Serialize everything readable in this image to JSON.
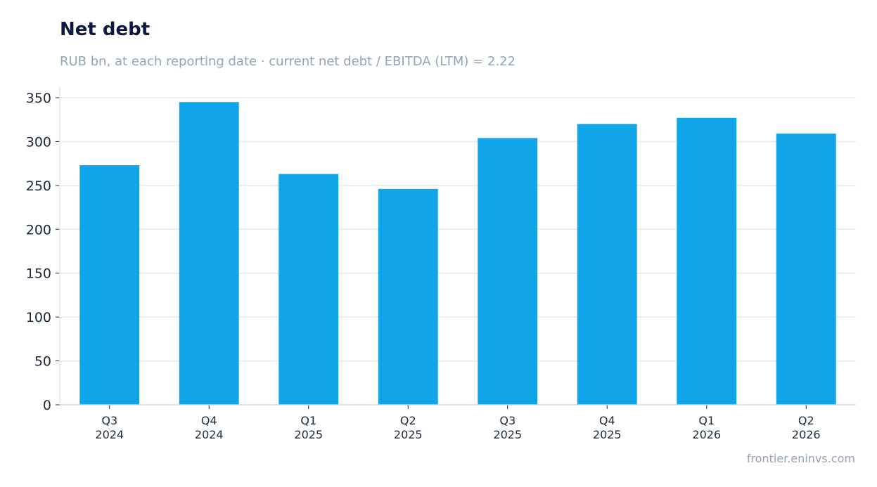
{
  "chart_data": {
    "type": "bar",
    "title": "Net debt",
    "subtitle": "RUB bn, at each reporting date · current net debt / EBITDA (LTM) = 2.22",
    "source": "frontier.eninvs.com",
    "xlabel": "",
    "ylabel": "",
    "categories": [
      [
        "Q3",
        "2024"
      ],
      [
        "Q4",
        "2024"
      ],
      [
        "Q1",
        "2025"
      ],
      [
        "Q2",
        "2025"
      ],
      [
        "Q3",
        "2025"
      ],
      [
        "Q4",
        "2025"
      ],
      [
        "Q1",
        "2026"
      ],
      [
        "Q2",
        "2026"
      ]
    ],
    "values": [
      273,
      345,
      263,
      246,
      304,
      320,
      327,
      309
    ],
    "ylim": [
      0,
      350
    ],
    "yticks": [
      0,
      50,
      100,
      150,
      200,
      250,
      300,
      350
    ],
    "grid": "horizontal",
    "colors": {
      "bar": "#10a5e8",
      "grid": "#e2e8f0",
      "axis": "#cbd5e1",
      "title": "#0b1a3c",
      "muted": "#94a3b8"
    }
  }
}
